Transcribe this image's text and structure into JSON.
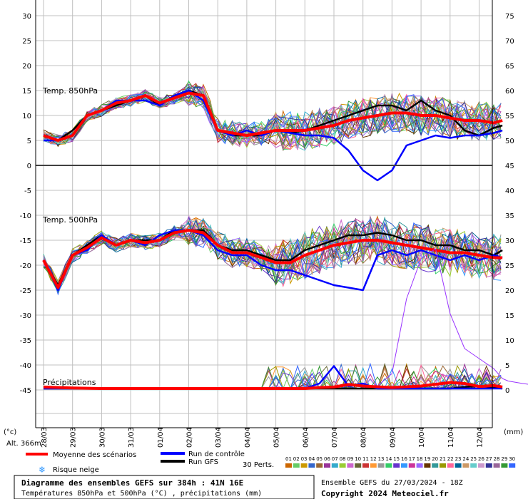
{
  "chart_data": {
    "type": "line",
    "x": [
      "28/03",
      "29/03",
      "30/03",
      "31/03",
      "01/04",
      "02/04",
      "03/04",
      "04/04",
      "05/04",
      "06/04",
      "07/04",
      "08/04",
      "09/04",
      "10/04",
      "11/04",
      "12/04"
    ],
    "left_axis": {
      "ticks": [
        "30",
        "25",
        "20",
        "15",
        "10",
        "5",
        "0",
        "-5",
        "-10",
        "-15",
        "-20",
        "-25",
        "-30",
        "-35",
        "-40",
        "-45"
      ],
      "values": [
        30,
        25,
        20,
        15,
        10,
        5,
        0,
        -5,
        -10,
        -15,
        -20,
        -25,
        -30,
        -35,
        -40,
        -45
      ],
      "unit": "(°c)"
    },
    "right_axis": {
      "ticks": [
        "75",
        "70",
        "65",
        "60",
        "55",
        "50",
        "45",
        "40",
        "35",
        "30",
        "25",
        "20",
        "15",
        "10",
        "5",
        "0"
      ],
      "values": [
        75,
        70,
        65,
        60,
        55,
        50,
        45,
        40,
        35,
        30,
        25,
        20,
        15,
        10,
        5,
        0
      ],
      "unit": "(mm)"
    },
    "grid": true,
    "panels": [
      {
        "title": "Temp. 850hPa",
        "series": [
          {
            "name": "Moyenne des scénarios",
            "color": "#ff0000",
            "role": "mean",
            "x": [
              0,
              0.5,
              1,
              1.5,
              2,
              2.5,
              3,
              3.5,
              4,
              4.5,
              5,
              5.5,
              6,
              6.5,
              7,
              7.5,
              8,
              8.5,
              9,
              9.5,
              10,
              10.5,
              11,
              11.5,
              12,
              12.5,
              13,
              13.5,
              14,
              14.5,
              15,
              15.5,
              15.8
            ],
            "values": [
              6,
              5,
              6,
              10,
              11,
              12.5,
              13,
              14,
              12.5,
              13.5,
              14.5,
              14,
              7,
              6.5,
              6,
              6.5,
              7,
              7,
              7,
              7.5,
              8,
              9,
              9.5,
              10,
              10.5,
              10.5,
              10,
              10,
              9.5,
              9,
              9,
              8.5,
              9
            ]
          },
          {
            "name": "Run de contrôle",
            "color": "#0000ff",
            "role": "control",
            "x": [
              0,
              0.5,
              1,
              1.5,
              2,
              2.5,
              3,
              3.5,
              4,
              4.5,
              5,
              5.5,
              6,
              6.5,
              7,
              7.5,
              8,
              8.5,
              9,
              9.5,
              10,
              10.5,
              11,
              11.5,
              12,
              12.5,
              13,
              13.5,
              14,
              14.5,
              15,
              15.5,
              15.8
            ],
            "values": [
              5,
              5,
              6,
              10,
              11,
              13,
              13,
              13,
              12,
              14,
              15,
              13,
              7,
              6,
              7,
              6,
              7,
              6.5,
              6,
              6,
              5.5,
              3,
              -1,
              -3,
              -1,
              4,
              5,
              6,
              5.5,
              6,
              6,
              6.5,
              7
            ]
          },
          {
            "name": "Run GFS",
            "color": "#000000",
            "role": "gfs",
            "x": [
              0,
              0.5,
              1,
              1.5,
              2,
              2.5,
              3,
              3.5,
              4,
              4.5,
              5,
              5.5,
              6,
              6.5,
              7,
              7.5,
              8,
              8.5,
              9,
              9.5,
              10,
              10.5,
              11,
              11.5,
              12,
              12.5,
              13,
              13.5,
              14,
              14.5,
              15,
              15.5,
              15.8
            ],
            "values": [
              6,
              5,
              7,
              10,
              11,
              12,
              13,
              14,
              12,
              14,
              15,
              14,
              7,
              6,
              6,
              6,
              7,
              6.5,
              7,
              8,
              9,
              10,
              11,
              12,
              12,
              11,
              13,
              11,
              10,
              7,
              6,
              7.5,
              8
            ]
          }
        ]
      },
      {
        "title": "Temp. 500hPa",
        "series": [
          {
            "name": "Moyenne des scénarios",
            "color": "#ff0000",
            "role": "mean",
            "x": [
              0,
              0.5,
              1,
              1.5,
              2,
              2.5,
              3,
              3.5,
              4,
              4.5,
              5,
              5.5,
              6,
              6.5,
              7,
              7.5,
              8,
              8.5,
              9,
              9.5,
              10,
              10.5,
              11,
              11.5,
              12,
              12.5,
              13,
              13.5,
              14,
              14.5,
              15,
              15.5,
              15.8
            ],
            "values": [
              -19,
              -24.5,
              -18,
              -16.5,
              -14.5,
              -16,
              -15,
              -15.5,
              -15,
              -13.5,
              -13,
              -13.5,
              -16,
              -17.5,
              -17.5,
              -18.5,
              -19.5,
              -19.5,
              -18,
              -17,
              -16,
              -15.5,
              -15,
              -15,
              -15.5,
              -16,
              -16.5,
              -17,
              -17.5,
              -17.5,
              -18,
              -18.5,
              -18.5
            ]
          },
          {
            "name": "Run de contrôle",
            "color": "#0000ff",
            "role": "control",
            "x": [
              0,
              0.5,
              1,
              1.5,
              2,
              2.5,
              3,
              3.5,
              4,
              4.5,
              5,
              5.5,
              6,
              6.5,
              7,
              7.5,
              8,
              8.5,
              9,
              9.5,
              10,
              10.5,
              11,
              11.5,
              12,
              12.5,
              13,
              13.5,
              14,
              14.5,
              15,
              15.5,
              15.8
            ],
            "values": [
              -19,
              -25,
              -18,
              -17,
              -14,
              -16,
              -15,
              -16,
              -14,
              -13,
              -13,
              -14,
              -17,
              -18,
              -18,
              -20,
              -21,
              -21,
              -22,
              -23,
              -24,
              -24.5,
              -25,
              -18,
              -17,
              -18,
              -17,
              -18,
              -19,
              -18,
              -19,
              -18,
              -18.5
            ]
          },
          {
            "name": "Run GFS",
            "color": "#000000",
            "role": "gfs",
            "x": [
              0,
              0.5,
              1,
              1.5,
              2,
              2.5,
              3,
              3.5,
              4,
              4.5,
              5,
              5.5,
              6,
              6.5,
              7,
              7.5,
              8,
              8.5,
              9,
              9.5,
              10,
              10.5,
              11,
              11.5,
              12,
              12.5,
              13,
              13.5,
              14,
              14.5,
              15,
              15.5,
              15.8
            ],
            "values": [
              -19,
              -24,
              -18,
              -16,
              -14,
              -16,
              -15,
              -15,
              -15,
              -13,
              -13,
              -13,
              -16,
              -17,
              -17,
              -18,
              -19,
              -19,
              -17,
              -16,
              -15,
              -14,
              -14,
              -13.5,
              -14,
              -15,
              -15,
              -16,
              -16,
              -17,
              -17,
              -18,
              -17
            ]
          }
        ]
      },
      {
        "title": "Précipitations",
        "series": [
          {
            "name": "Moyenne des scénarios",
            "color": "#ff0000",
            "role": "mean",
            "x": [
              0,
              1,
              2,
              3,
              4,
              5,
              6,
              7,
              8,
              9,
              9.5,
              10,
              10.5,
              11,
              12,
              13,
              14,
              14.5,
              15,
              15.5,
              15.8
            ],
            "values": [
              0.3,
              0.1,
              0,
              0,
              0,
              0,
              0,
              0,
              0,
              0,
              0.2,
              0.3,
              0.8,
              0.5,
              0.2,
              0.5,
              1.2,
              1.0,
              0.4,
              0.6,
              0.3
            ]
          },
          {
            "name": "Run de contrôle",
            "color": "#0000ff",
            "role": "control",
            "x": [
              0,
              1,
              2,
              3,
              4,
              5,
              6,
              7,
              8,
              8.5,
              9,
              9.5,
              10,
              10.5,
              11,
              11.5,
              12,
              12.5,
              13,
              13.5,
              14,
              14.5,
              15,
              15.5,
              15.8
            ],
            "values": [
              0,
              0,
              0,
              0,
              0,
              0,
              0,
              0,
              0,
              0,
              0,
              1,
              4.5,
              0.5,
              1,
              0,
              0,
              0,
              0,
              0,
              0,
              0,
              0,
              0,
              0
            ]
          },
          {
            "name": "Run GFS",
            "color": "#000000",
            "role": "gfs",
            "x": [
              0,
              1,
              2,
              3,
              4,
              5,
              6,
              7,
              8,
              9,
              10,
              11,
              12,
              13,
              14,
              14.5,
              15,
              15.5,
              15.8
            ],
            "values": [
              0,
              0,
              0,
              0,
              0,
              0,
              0,
              0,
              0,
              0,
              0,
              0,
              0,
              0,
              0,
              0.3,
              0.5,
              0.2,
              0
            ]
          },
          {
            "name": "09",
            "color": "#9933ff",
            "role": "member",
            "x": [
              9,
              10,
              11,
              11.5,
              12,
              12.5,
              13,
              13.5,
              14,
              14.5,
              15,
              15.5,
              15.8,
              16,
              16.5,
              17,
              17.5,
              18
            ],
            "values": [
              0,
              0,
              0,
              0.5,
              3,
              18,
              26,
              28,
              15,
              8,
              6,
              4,
              2,
              1.5,
              1,
              0.6,
              0.3,
              0
            ],
            "note": "spike"
          }
        ]
      }
    ],
    "legend": [
      {
        "label": "Moyenne des scénarios",
        "color": "#ff0000"
      },
      {
        "label": "Run de contrôle",
        "color": "#0000ff"
      },
      {
        "label": "Run GFS",
        "color": "#000000"
      },
      {
        "label": "Risque neige",
        "color": "#3399ff"
      }
    ],
    "members_label": "30 Perts.",
    "members": [
      "01",
      "02",
      "03",
      "04",
      "05",
      "06",
      "07",
      "08",
      "09",
      "10",
      "11",
      "12",
      "13",
      "14",
      "15",
      "16",
      "17",
      "18",
      "19",
      "20",
      "21",
      "22",
      "23",
      "24",
      "25",
      "26",
      "27",
      "28",
      "29",
      "30"
    ],
    "member_colors": [
      "#cc6600",
      "#66cc66",
      "#cc9900",
      "#3366cc",
      "#996633",
      "#993399",
      "#33aacc",
      "#99cc33",
      "#cc66cc",
      "#666633",
      "#cc3333",
      "#ff9933",
      "#999999",
      "#33cc66",
      "#6633cc",
      "#3399ff",
      "#cc3399",
      "#9966ff",
      "#663300",
      "#339999",
      "#999900",
      "#ff6699",
      "#006699",
      "#cc9966",
      "#66cccc",
      "#cc99cc",
      "#333399",
      "#996699",
      "#339933",
      "#3366ff"
    ]
  },
  "texts": {
    "alt": "Alt. 366m",
    "unit_left": "(°c)",
    "unit_right": "(mm)",
    "box_title": "Diagramme des ensembles GEFS sur 384h : 41N 16E",
    "box_sub": "Températures 850hPa et 500hPa (°C) , précipitations (mm)",
    "footer_run": "Ensemble GEFS du 27/03/2024 - 18Z",
    "footer_copy": "Copyright 2024 Meteociel.fr"
  }
}
